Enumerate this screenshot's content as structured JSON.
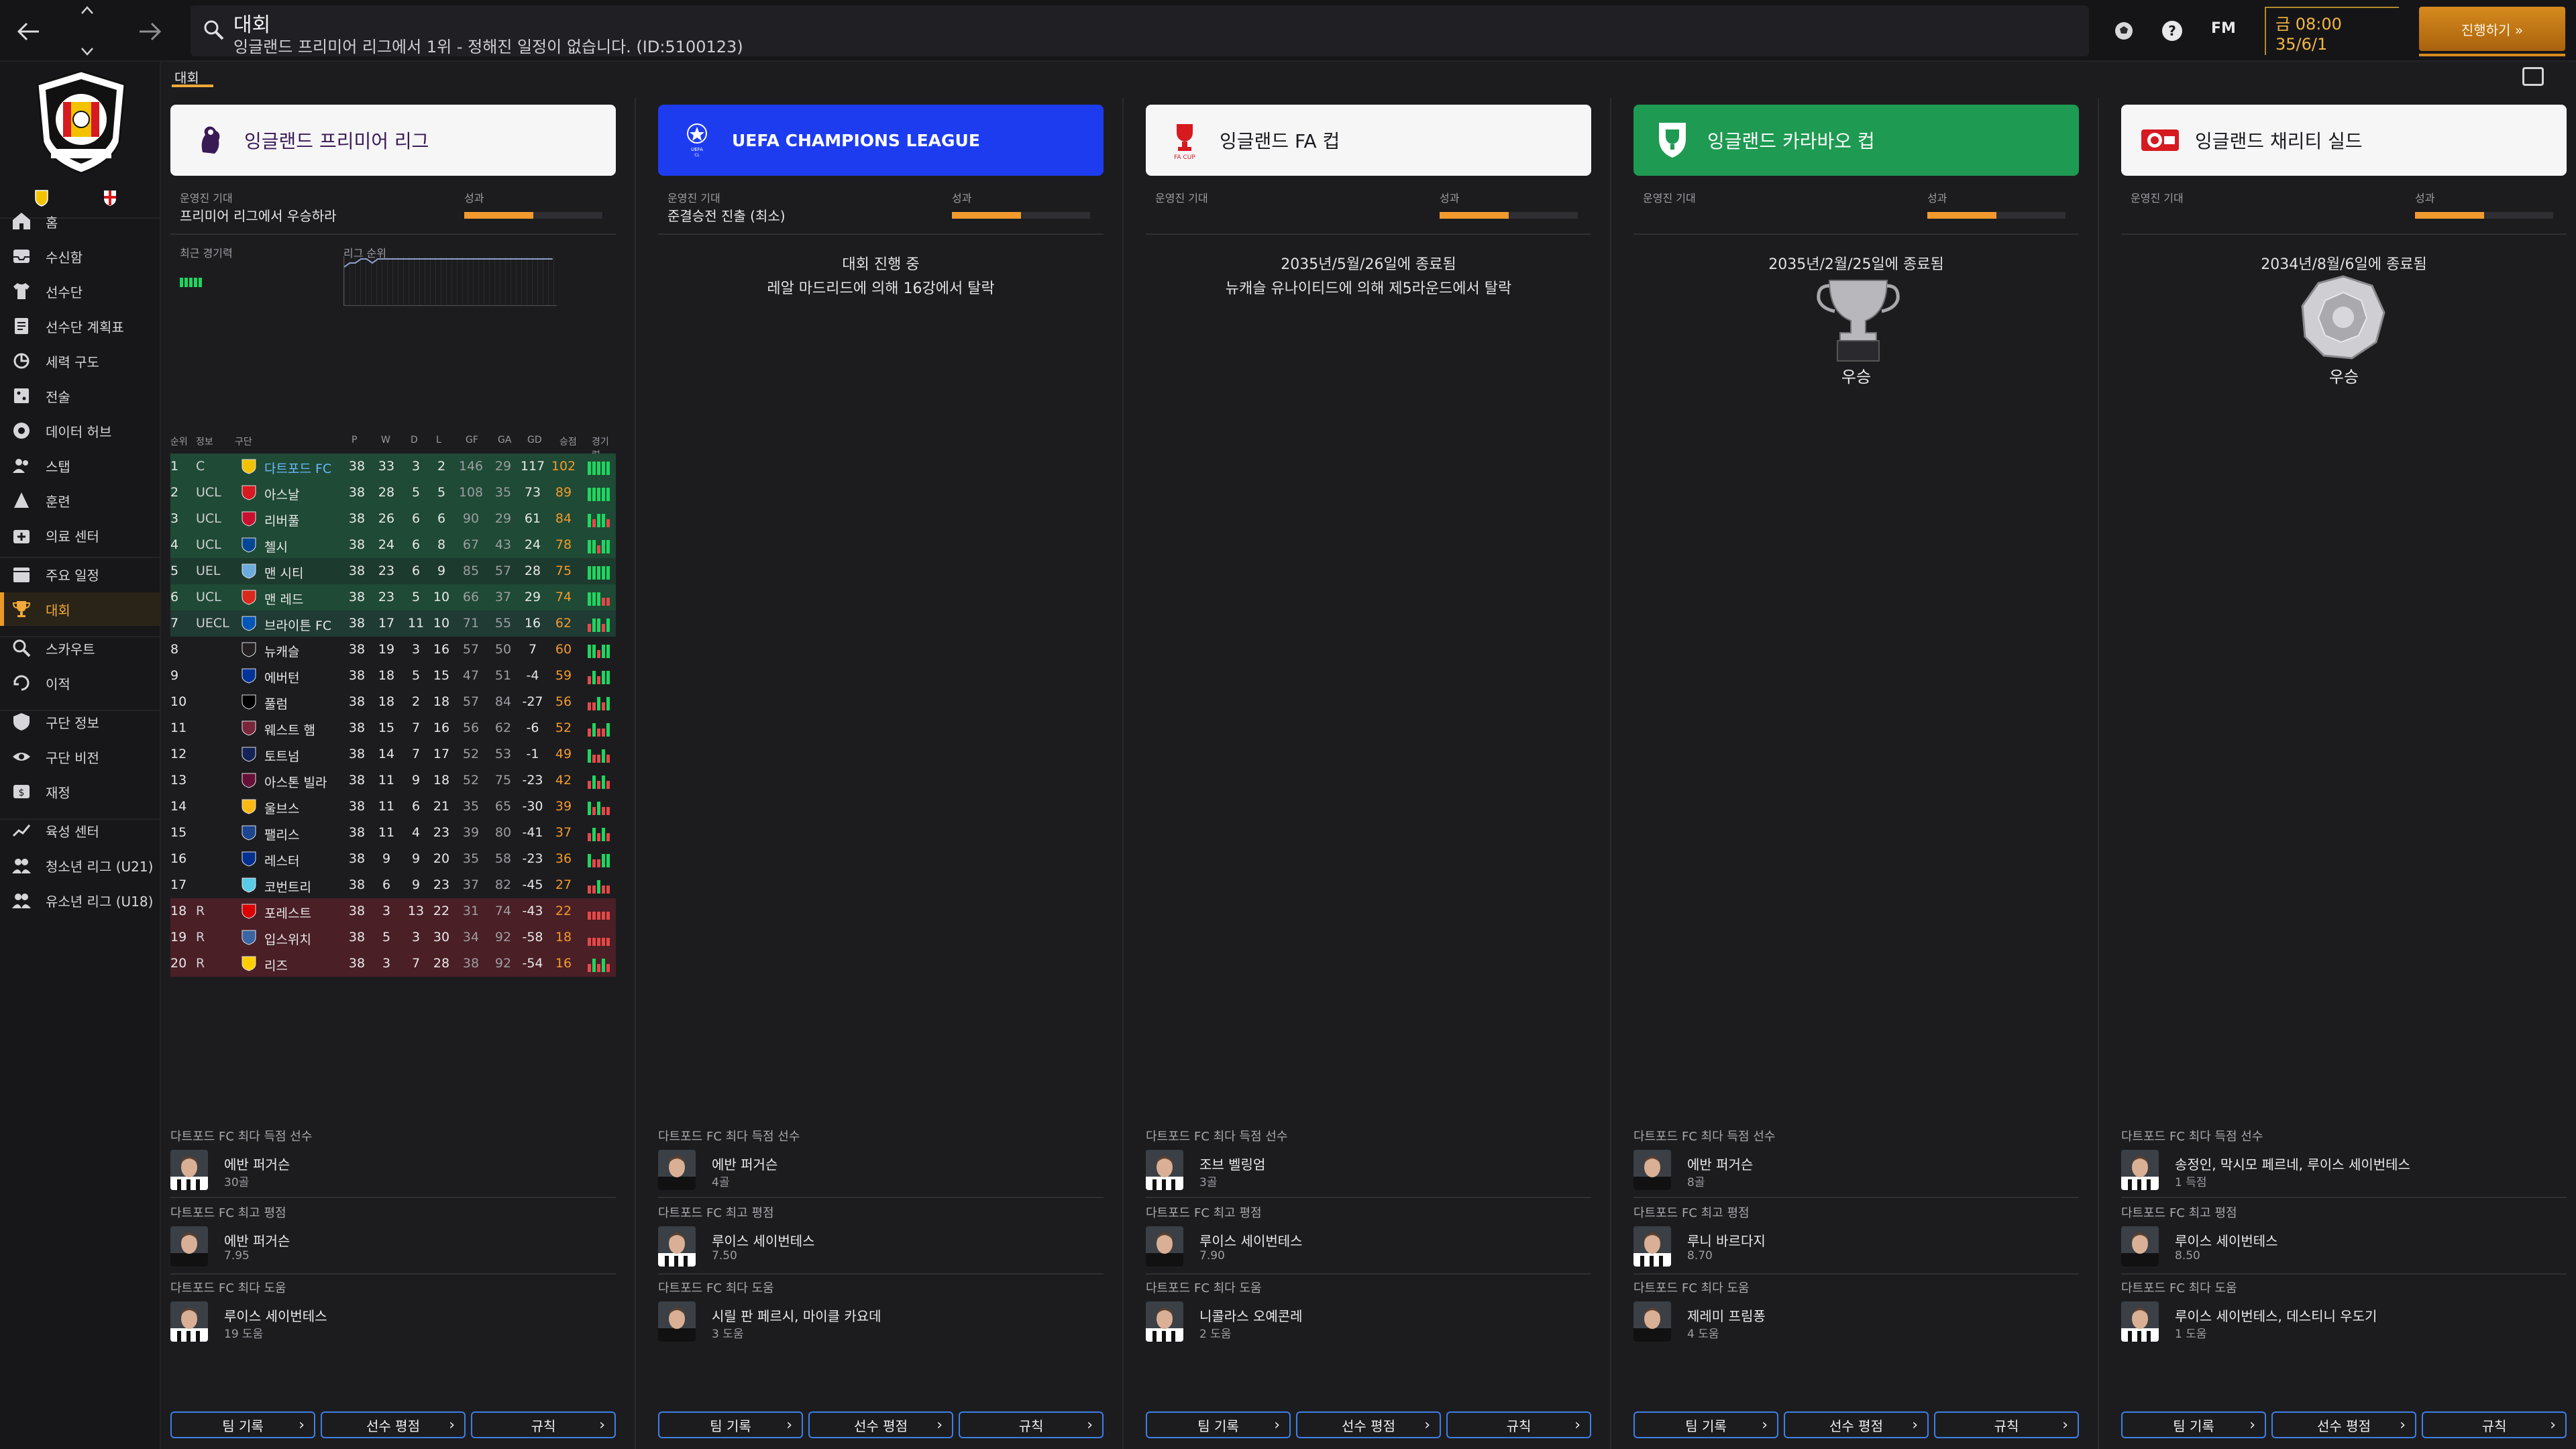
{
  "topbar": {
    "search_title": "대회",
    "search_subtitle": "잉글랜드 프리미어 리그에서 1위 - 정해진 일정이 없습니다. (ID:5100123)",
    "fm_logo": "FM",
    "time": "금 08:00",
    "date": "35/6/1",
    "continue_label": "진행하기 »"
  },
  "sidebar": {
    "items": [
      {
        "label": "홈",
        "icon": "home-icon"
      },
      {
        "label": "수신함",
        "icon": "inbox-icon"
      },
      {
        "label": "선수단",
        "icon": "shirt-icon"
      },
      {
        "label": "선수단 계획표",
        "icon": "planner-icon"
      },
      {
        "label": "세력 구도",
        "icon": "dynamics-icon"
      },
      {
        "label": "전술",
        "icon": "tactics-icon"
      },
      {
        "label": "데이터 허브",
        "icon": "data-hub-icon"
      },
      {
        "label": "스탭",
        "icon": "staff-icon"
      },
      {
        "label": "훈련",
        "icon": "training-icon"
      },
      {
        "label": "의료 센터",
        "icon": "medical-icon"
      },
      {
        "label": "주요 일정",
        "icon": "calendar-icon"
      },
      {
        "label": "대회",
        "icon": "trophy-icon"
      },
      {
        "label": "스카우트",
        "icon": "scout-icon"
      },
      {
        "label": "이적",
        "icon": "transfer-icon"
      },
      {
        "label": "구단 정보",
        "icon": "club-info-icon"
      },
      {
        "label": "구단 비전",
        "icon": "vision-icon"
      },
      {
        "label": "재정",
        "icon": "finance-icon"
      },
      {
        "label": "육성 센터",
        "icon": "development-icon"
      },
      {
        "label": "청소년 리그 (U21)",
        "icon": "u21-icon"
      },
      {
        "label": "유소년 리그 (U18)",
        "icon": "u18-icon"
      }
    ],
    "active_index": 11
  },
  "page": {
    "tab": "대회"
  },
  "labels": {
    "expectation": "운영진 기대",
    "performance": "성과",
    "recent_form": "최근 경기력",
    "league_position": "리그 순위",
    "top_scorer": "다트포드 FC 최다 득점 선수",
    "best_rating": "다트포드 FC 최고 평점",
    "top_assists": "다트포드 FC 최다 도움",
    "team_records": "팀 기록",
    "player_ratings": "선수 평점",
    "rules": "규칙"
  },
  "league_table": {
    "headers": [
      "순위",
      "정보",
      "구단",
      "P",
      "W",
      "D",
      "L",
      "GF",
      "GA",
      "GD",
      "승점",
      "경기력"
    ],
    "rows": [
      {
        "pos": "1",
        "info": "C",
        "team": "다트포드 FC",
        "p": "38",
        "w": "33",
        "d": "3",
        "l": "2",
        "gf": "146",
        "ga": "29",
        "gd": "117",
        "pts": "102",
        "zone": "cl",
        "highlight": true,
        "form": "WWWWW"
      },
      {
        "pos": "2",
        "info": "UCL",
        "team": "아스날",
        "p": "38",
        "w": "28",
        "d": "5",
        "l": "5",
        "gf": "108",
        "ga": "35",
        "gd": "73",
        "pts": "89",
        "zone": "cl",
        "form": "WWWWW"
      },
      {
        "pos": "3",
        "info": "UCL",
        "team": "리버풀",
        "p": "38",
        "w": "26",
        "d": "6",
        "l": "6",
        "gf": "90",
        "ga": "29",
        "gd": "61",
        "pts": "84",
        "zone": "cl",
        "form": "WLWWL"
      },
      {
        "pos": "4",
        "info": "UCL",
        "team": "첼시",
        "p": "38",
        "w": "24",
        "d": "6",
        "l": "8",
        "gf": "67",
        "ga": "43",
        "gd": "24",
        "pts": "78",
        "zone": "cl",
        "form": "WWLWW"
      },
      {
        "pos": "5",
        "info": "UEL",
        "team": "맨 시티",
        "p": "38",
        "w": "23",
        "d": "6",
        "l": "9",
        "gf": "85",
        "ga": "57",
        "gd": "28",
        "pts": "75",
        "zone": "el",
        "form": "WWWWW"
      },
      {
        "pos": "6",
        "info": "UCL",
        "team": "맨 레드",
        "p": "38",
        "w": "23",
        "d": "5",
        "l": "10",
        "gf": "66",
        "ga": "37",
        "gd": "29",
        "pts": "74",
        "zone": "cl",
        "form": "WWWLL"
      },
      {
        "pos": "7",
        "info": "UECL",
        "team": "브라이튼 FC",
        "p": "38",
        "w": "17",
        "d": "11",
        "l": "10",
        "gf": "71",
        "ga": "55",
        "gd": "16",
        "pts": "62",
        "zone": "ecl",
        "form": "LWWLW"
      },
      {
        "pos": "8",
        "info": "",
        "team": "뉴캐슬",
        "p": "38",
        "w": "19",
        "d": "3",
        "l": "16",
        "gf": "57",
        "ga": "50",
        "gd": "7",
        "pts": "60",
        "zone": "",
        "form": "WWLWW"
      },
      {
        "pos": "9",
        "info": "",
        "team": "에버턴",
        "p": "38",
        "w": "18",
        "d": "5",
        "l": "15",
        "gf": "47",
        "ga": "51",
        "gd": "-4",
        "pts": "59",
        "zone": "",
        "form": "LWLWW"
      },
      {
        "pos": "10",
        "info": "",
        "team": "풀럼",
        "p": "38",
        "w": "18",
        "d": "2",
        "l": "18",
        "gf": "57",
        "ga": "84",
        "gd": "-27",
        "pts": "56",
        "zone": "",
        "form": "LLWLW"
      },
      {
        "pos": "11",
        "info": "",
        "team": "웨스트 햄",
        "p": "38",
        "w": "15",
        "d": "7",
        "l": "16",
        "gf": "56",
        "ga": "62",
        "gd": "-6",
        "pts": "52",
        "zone": "",
        "form": "LWLLW"
      },
      {
        "pos": "12",
        "info": "",
        "team": "토트넘",
        "p": "38",
        "w": "14",
        "d": "7",
        "l": "17",
        "gf": "52",
        "ga": "53",
        "gd": "-1",
        "pts": "49",
        "zone": "",
        "form": "WLLWL"
      },
      {
        "pos": "13",
        "info": "",
        "team": "아스톤 빌라",
        "p": "38",
        "w": "11",
        "d": "9",
        "l": "18",
        "gf": "52",
        "ga": "75",
        "gd": "-23",
        "pts": "42",
        "zone": "",
        "form": "LWLWL"
      },
      {
        "pos": "14",
        "info": "",
        "team": "울브스",
        "p": "38",
        "w": "11",
        "d": "6",
        "l": "21",
        "gf": "35",
        "ga": "65",
        "gd": "-30",
        "pts": "39",
        "zone": "",
        "form": "WLWLL"
      },
      {
        "pos": "15",
        "info": "",
        "team": "팰리스",
        "p": "38",
        "w": "11",
        "d": "4",
        "l": "23",
        "gf": "39",
        "ga": "80",
        "gd": "-41",
        "pts": "37",
        "zone": "",
        "form": "LWLWL"
      },
      {
        "pos": "16",
        "info": "",
        "team": "레스터",
        "p": "38",
        "w": "9",
        "d": "9",
        "l": "20",
        "gf": "35",
        "ga": "58",
        "gd": "-23",
        "pts": "36",
        "zone": "",
        "form": "WLLWW"
      },
      {
        "pos": "17",
        "info": "",
        "team": "코번트리",
        "p": "38",
        "w": "6",
        "d": "9",
        "l": "23",
        "gf": "37",
        "ga": "82",
        "gd": "-45",
        "pts": "27",
        "zone": "",
        "form": "LLWLL"
      },
      {
        "pos": "18",
        "info": "R",
        "team": "포레스트",
        "p": "38",
        "w": "3",
        "d": "13",
        "l": "22",
        "gf": "31",
        "ga": "74",
        "gd": "-43",
        "pts": "22",
        "zone": "rel",
        "form": "LLLLL"
      },
      {
        "pos": "19",
        "info": "R",
        "team": "입스위치",
        "p": "38",
        "w": "5",
        "d": "3",
        "l": "30",
        "gf": "34",
        "ga": "92",
        "gd": "-58",
        "pts": "18",
        "zone": "rel",
        "form": "LLLLL"
      },
      {
        "pos": "20",
        "info": "R",
        "team": "리즈",
        "p": "38",
        "w": "3",
        "d": "7",
        "l": "28",
        "gf": "38",
        "ga": "92",
        "gd": "-54",
        "pts": "16",
        "zone": "rel",
        "form": "LWLWL"
      }
    ]
  },
  "competitions": [
    {
      "name": "잉글랜드 프리미어 리그",
      "header_bg": "#f6f6f7",
      "header_fg": "#3a1a55",
      "logo_icon": "premier-league-icon",
      "expectation": "프리미어 리그에서 우승하라",
      "performance_fraction": 0.5,
      "stats": {
        "scorer": {
          "name": "에반 퍼거슨",
          "value": "30골"
        },
        "rating": {
          "name": "에반 퍼거슨",
          "value": "7.95"
        },
        "assists": {
          "name": "루이스 세이번테스",
          "value": "19 도움"
        }
      }
    },
    {
      "name": "UEFA CHAMPIONS LEAGUE",
      "header_bg": "#1d3cf0",
      "header_fg": "#ffffff",
      "logo_icon": "champions-league-icon",
      "expectation": "준결승전 진출 (최소)",
      "performance_fraction": 0.5,
      "status_lines": [
        "대회 진행 중",
        "레알 마드리드에 의해 16강에서 탈락"
      ],
      "stats": {
        "scorer": {
          "name": "에반 퍼거슨",
          "value": "4골"
        },
        "rating": {
          "name": "루이스 세이번테스",
          "value": "7.50"
        },
        "assists": {
          "name": "시릴 판 페르시, 마이클 카요데",
          "value": "3 도움"
        }
      }
    },
    {
      "name": "잉글랜드 FA 컵",
      "header_bg": "#f6f6f7",
      "header_fg": "#1a1a1f",
      "logo_icon": "fa-cup-icon",
      "expectation": "",
      "performance_fraction": 0.5,
      "status_lines": [
        "2035년/5월/26일에 종료됨",
        "뉴캐슬 유나이티드에 의해 제5라운드에서 탈락"
      ],
      "stats": {
        "scorer": {
          "name": "조브 벨링엄",
          "value": "3골"
        },
        "rating": {
          "name": "루이스 세이번테스",
          "value": "7.90"
        },
        "assists": {
          "name": "니콜라스 오예콘레",
          "value": "2 도움"
        }
      }
    },
    {
      "name": "잉글랜드 카라바오 컵",
      "header_bg": "#1e9a52",
      "header_fg": "#ffffff",
      "logo_icon": "carabao-cup-icon",
      "expectation": "",
      "performance_fraction": 0.5,
      "status_lines": [
        "2035년/2월/25일에 종료됨"
      ],
      "trophy_label": "우승",
      "stats": {
        "scorer": {
          "name": "에반 퍼거슨",
          "value": "8골"
        },
        "rating": {
          "name": "루니 바르다지",
          "value": "8.70"
        },
        "assists": {
          "name": "제레미 프림퐁",
          "value": "4 도움"
        }
      }
    },
    {
      "name": "잉글랜드 채리티 실드",
      "header_bg": "#f6f6f7",
      "header_fg": "#1a1a1f",
      "logo_icon": "community-shield-icon",
      "expectation": "",
      "performance_fraction": 0.5,
      "status_lines": [
        "2034년/8월/6일에 종료됨"
      ],
      "trophy_label": "우승",
      "stats": {
        "scorer": {
          "name": "송정인, 막시모 페르네, 루이스 세이번테스",
          "value": "1 득점"
        },
        "rating": {
          "name": "루이스 세이번테스",
          "value": "8.50"
        },
        "assists": {
          "name": "루이스 세이번테스, 데스티니 우도기",
          "value": "1 도움"
        }
      }
    }
  ],
  "colors": {
    "accent": "#f29a2e",
    "button_border": "#3d7fe6",
    "win": "#1ed65f",
    "loss": "#e64848",
    "cl_zone": "#1f4a35",
    "el_zone": "#1d3a2e",
    "rel_zone": "#4a1f26"
  }
}
